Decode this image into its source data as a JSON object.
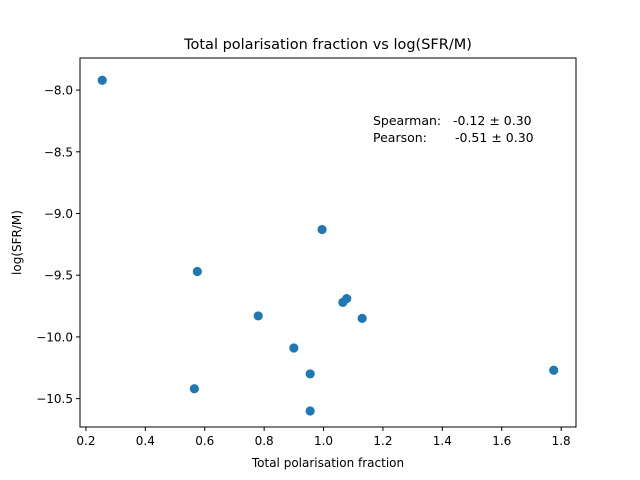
{
  "chart_data": {
    "type": "scatter",
    "title": "Total polarisation fraction vs log(SFR/M)",
    "xlabel": "Total polarisation fraction",
    "ylabel": "log(SFR/M)",
    "xlim": [
      0.18,
      1.85
    ],
    "ylim": [
      -10.73,
      -7.74
    ],
    "xticks": [
      0.2,
      0.4,
      0.6,
      0.8,
      1.0,
      1.2,
      1.4,
      1.6,
      1.8
    ],
    "xtick_labels": [
      "0.2",
      "0.4",
      "0.6",
      "0.8",
      "1.0",
      "1.2",
      "1.4",
      "1.6",
      "1.8"
    ],
    "yticks": [
      -8.0,
      -8.5,
      -9.0,
      -9.5,
      -10.0,
      -10.5
    ],
    "ytick_labels": [
      "−8.0",
      "−8.5",
      "−9.0",
      "−9.5",
      "−10.0",
      "−10.5"
    ],
    "grid": false,
    "marker_color": "#1f77b4",
    "series": [
      {
        "points": [
          {
            "x": 0.255,
            "y": -7.92
          },
          {
            "x": 0.575,
            "y": -9.47
          },
          {
            "x": 0.565,
            "y": -10.42
          },
          {
            "x": 0.78,
            "y": -9.83
          },
          {
            "x": 0.9,
            "y": -10.09
          },
          {
            "x": 0.955,
            "y": -10.3
          },
          {
            "x": 0.955,
            "y": -10.6
          },
          {
            "x": 0.995,
            "y": -9.13
          },
          {
            "x": 1.065,
            "y": -9.72
          },
          {
            "x": 1.078,
            "y": -9.69
          },
          {
            "x": 1.13,
            "y": -9.85
          },
          {
            "x": 1.775,
            "y": -10.27
          }
        ]
      }
    ],
    "annotations": [
      {
        "label": "Spearman:",
        "value": "-0.12 ± 0.30"
      },
      {
        "label": "Pearson:",
        "value": "-0.51 ± 0.30"
      }
    ]
  }
}
